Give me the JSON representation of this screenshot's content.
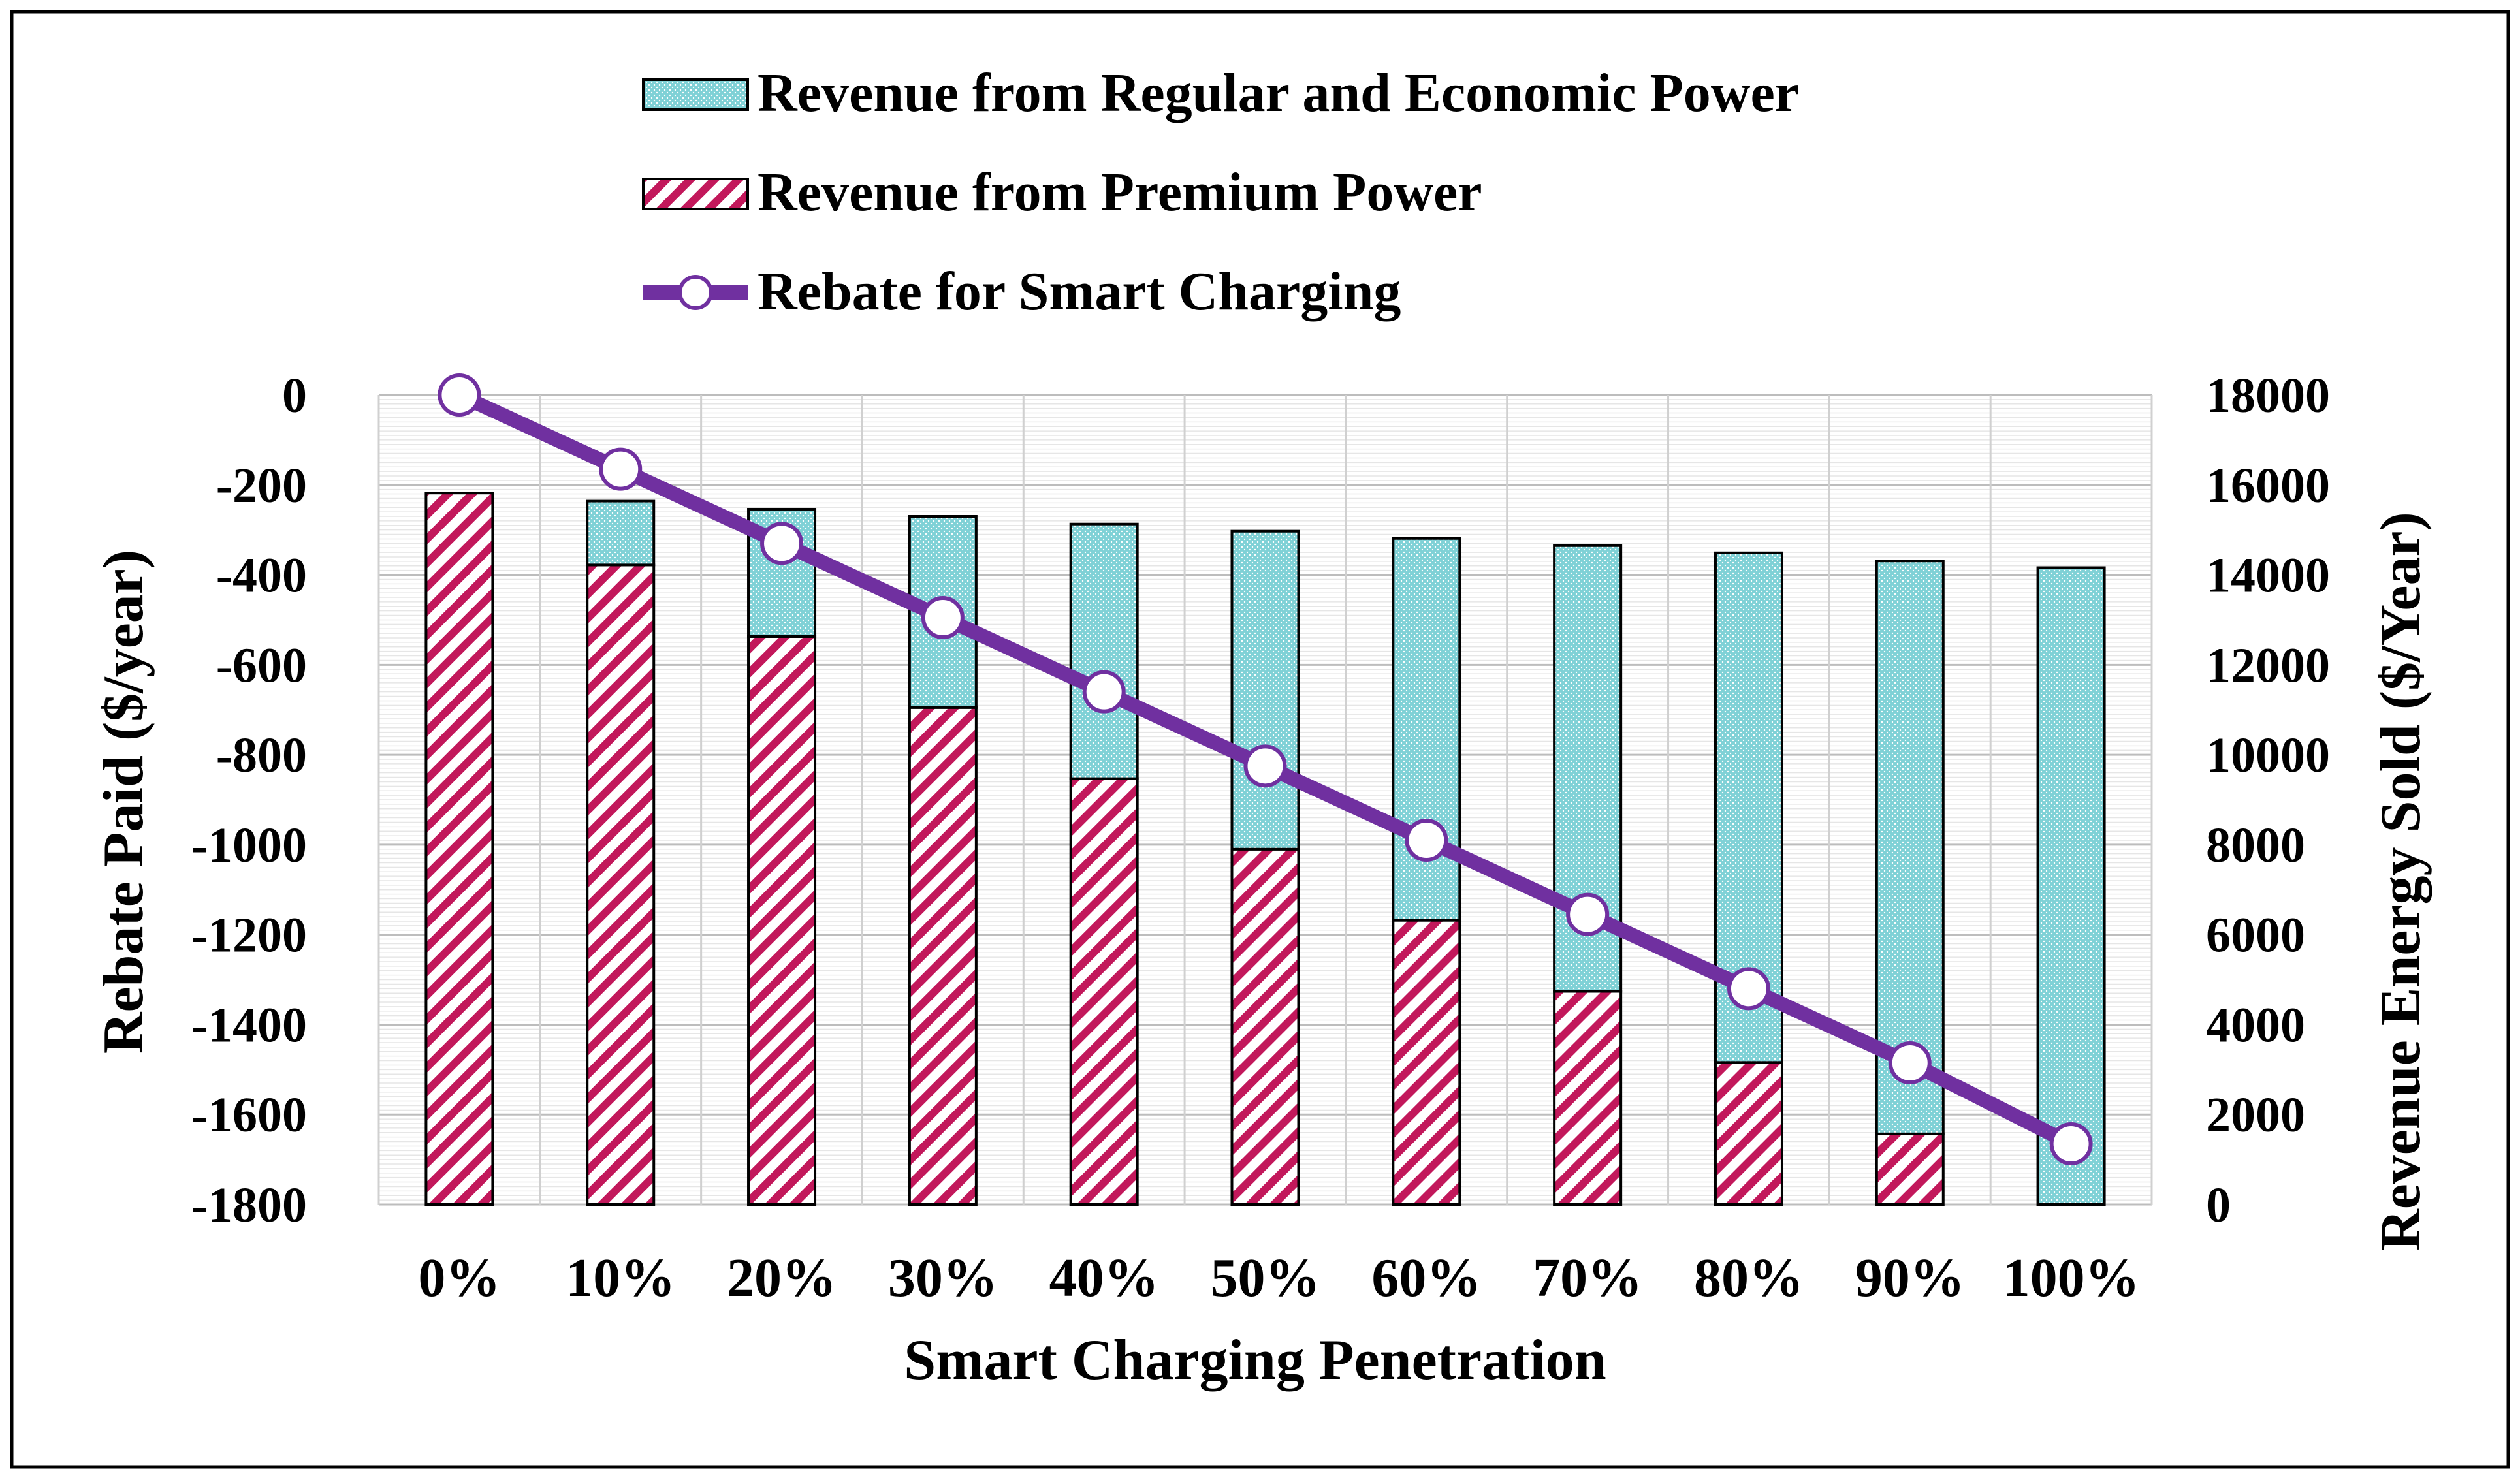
{
  "chart_data": {
    "type": "bar",
    "stacked": true,
    "categories": [
      "0%",
      "10%",
      "20%",
      "30%",
      "40%",
      "50%",
      "60%",
      "70%",
      "80%",
      "90%",
      "100%"
    ],
    "series": [
      {
        "name": "Revenue from Premium Power",
        "kind": "bar",
        "axis": "right",
        "pattern": "hatch",
        "color": "#c2185b",
        "values": [
          15820,
          14220,
          12630,
          11050,
          9470,
          7900,
          6320,
          4740,
          3160,
          1570,
          0
        ]
      },
      {
        "name": "Revenue from Regular and Economic Power",
        "kind": "bar",
        "axis": "right",
        "pattern": "dots",
        "color": "#7fd1d6",
        "values": [
          0,
          1420,
          2830,
          4250,
          5660,
          7070,
          8490,
          9910,
          11330,
          12740,
          14160
        ]
      },
      {
        "name": "Rebate for Smart Charging",
        "kind": "line",
        "axis": "left",
        "color": "#7030a0",
        "values": [
          0,
          -165,
          -330,
          -495,
          -660,
          -825,
          -990,
          -1155,
          -1320,
          -1485,
          -1665
        ]
      }
    ],
    "legend_order": [
      "Revenue from Regular and Economic Power",
      "Revenue from Premium Power",
      "Rebate for Smart Charging"
    ],
    "legend_position": "top-center",
    "xlabel": "Smart Charging Penetration",
    "ylabel_left": "Rebate Paid ($/year)",
    "ylabel_right": "Revenue Energy Sold ($/Year)",
    "ylim_left": [
      -1800,
      0
    ],
    "ylim_right": [
      0,
      18000
    ],
    "yticks_left": [
      "0",
      "-200",
      "-400",
      "-600",
      "-800",
      "-1000",
      "-1200",
      "-1400",
      "-1600",
      "-1800"
    ],
    "yticks_right": [
      "18000",
      "16000",
      "14000",
      "12000",
      "10000",
      "8000",
      "6000",
      "4000",
      "2000",
      "0"
    ],
    "grid": true
  }
}
